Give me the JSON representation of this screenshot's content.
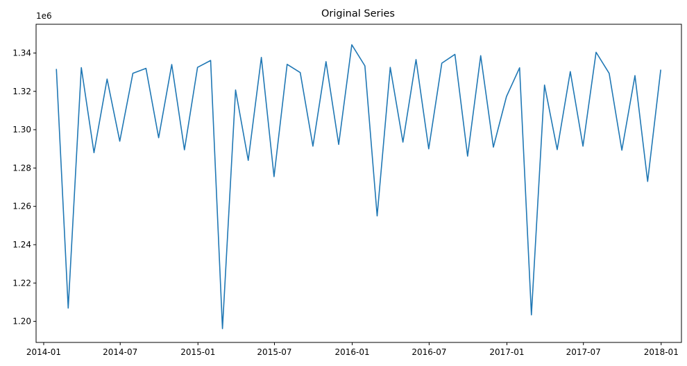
{
  "chart_data": {
    "type": "line",
    "title": "Original Series",
    "xlabel": "",
    "ylabel": "",
    "y_offset_label": "1e6",
    "y_scale": 1000000,
    "ylim": [
      1.189,
      1.355
    ],
    "xlim": [
      "2013-12-14",
      "2018-02-18"
    ],
    "grid": false,
    "legend": "none",
    "line_color": "#1f77b4",
    "x_ticks": [
      {
        "date": "2014-01-01",
        "label": "2014-01"
      },
      {
        "date": "2014-07-01",
        "label": "2014-07"
      },
      {
        "date": "2015-01-01",
        "label": "2015-01"
      },
      {
        "date": "2015-07-01",
        "label": "2015-07"
      },
      {
        "date": "2016-01-01",
        "label": "2016-01"
      },
      {
        "date": "2016-07-01",
        "label": "2016-07"
      },
      {
        "date": "2017-01-01",
        "label": "2017-01"
      },
      {
        "date": "2017-07-01",
        "label": "2017-07"
      },
      {
        "date": "2018-01-01",
        "label": "2018-01"
      }
    ],
    "y_ticks": [
      {
        "value": 1.2,
        "label": "1.20"
      },
      {
        "value": 1.22,
        "label": "1.22"
      },
      {
        "value": 1.24,
        "label": "1.24"
      },
      {
        "value": 1.26,
        "label": "1.26"
      },
      {
        "value": 1.28,
        "label": "1.28"
      },
      {
        "value": 1.3,
        "label": "1.30"
      },
      {
        "value": 1.32,
        "label": "1.32"
      },
      {
        "value": 1.34,
        "label": "1.34"
      }
    ],
    "series": [
      {
        "x": [
          "2014-01-31",
          "2014-02-28",
          "2014-03-31",
          "2014-04-30",
          "2014-05-31",
          "2014-06-30",
          "2014-07-31",
          "2014-08-31",
          "2014-09-30",
          "2014-10-31",
          "2014-11-30",
          "2014-12-31",
          "2015-01-31",
          "2015-02-28",
          "2015-03-31",
          "2015-04-30",
          "2015-05-31",
          "2015-06-30",
          "2015-07-31",
          "2015-08-31",
          "2015-09-30",
          "2015-10-31",
          "2015-11-30",
          "2015-12-31",
          "2016-01-31",
          "2016-02-29",
          "2016-03-31",
          "2016-04-30",
          "2016-05-31",
          "2016-06-30",
          "2016-07-31",
          "2016-08-31",
          "2016-09-30",
          "2016-10-31",
          "2016-11-30",
          "2016-12-31",
          "2017-01-31",
          "2017-02-28",
          "2017-03-31",
          "2017-04-30",
          "2017-05-31",
          "2017-06-30",
          "2017-07-31",
          "2017-08-31",
          "2017-09-30",
          "2017-10-31",
          "2017-11-30",
          "2017-12-31"
        ],
        "y": [
          1.3317,
          1.2069,
          1.3324,
          1.288,
          1.3264,
          1.294,
          1.3294,
          1.332,
          1.2958,
          1.334,
          1.2895,
          1.3325,
          1.3361,
          1.1962,
          1.3207,
          1.284,
          1.3377,
          1.2755,
          1.3341,
          1.3298,
          1.2914,
          1.3355,
          1.2923,
          1.3443,
          1.3333,
          1.255,
          1.3325,
          1.2935,
          1.3366,
          1.29,
          1.3347,
          1.3393,
          1.2862,
          1.3386,
          1.2909,
          1.3173,
          1.3323,
          1.2034,
          1.3233,
          1.2896,
          1.3303,
          1.2914,
          1.3404,
          1.3294,
          1.2893,
          1.3282,
          1.273,
          1.3313
        ]
      }
    ]
  }
}
